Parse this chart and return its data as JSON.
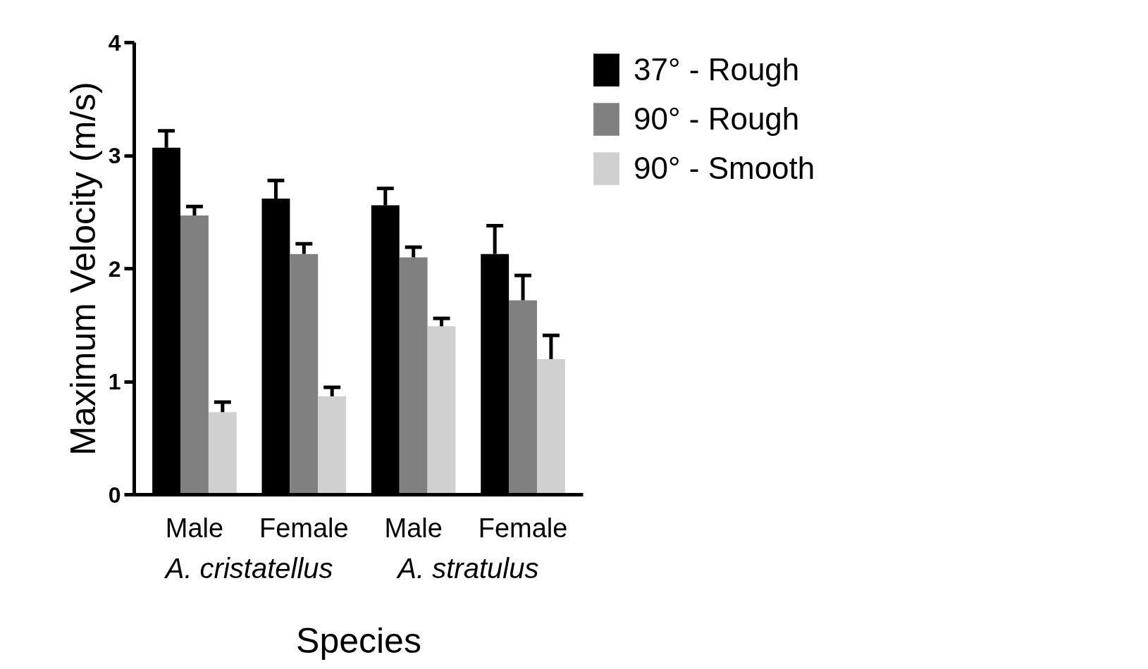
{
  "chart_data": {
    "type": "bar",
    "xlabel": "Species",
    "ylabel": "Maximum Velocity (m/s)",
    "categories": [
      "Male",
      "Female",
      "Male",
      "Female"
    ],
    "series": [
      {
        "name": "37° - Rough",
        "color": "#000000",
        "values": [
          3.07,
          2.62,
          2.56,
          2.13
        ],
        "errors": [
          [
            3.07,
            3.22
          ],
          [
            2.62,
            2.78
          ],
          [
            2.56,
            2.71
          ],
          [
            2.13,
            2.38
          ]
        ]
      },
      {
        "name": "90° - Rough",
        "color": "#808080",
        "values": [
          2.47,
          2.13,
          2.1,
          1.72
        ],
        "errors": [
          [
            2.47,
            2.55
          ],
          [
            2.13,
            2.22
          ],
          [
            2.1,
            2.19
          ],
          [
            1.72,
            1.94
          ]
        ]
      },
      {
        "name": "90° - Smooth",
        "color": "#d0d0d0",
        "values": [
          0.73,
          0.87,
          1.49,
          1.2
        ],
        "errors": [
          [
            0.73,
            0.82
          ],
          [
            0.87,
            0.95
          ],
          [
            1.49,
            1.56
          ],
          [
            1.2,
            1.41
          ]
        ]
      }
    ],
    "annotations": [
      "A. cristatellus",
      "A. stratulus"
    ],
    "ylim": [
      0,
      4
    ],
    "yticks": [
      0,
      1,
      2,
      3,
      4
    ],
    "grid": false,
    "legend": "top right"
  }
}
